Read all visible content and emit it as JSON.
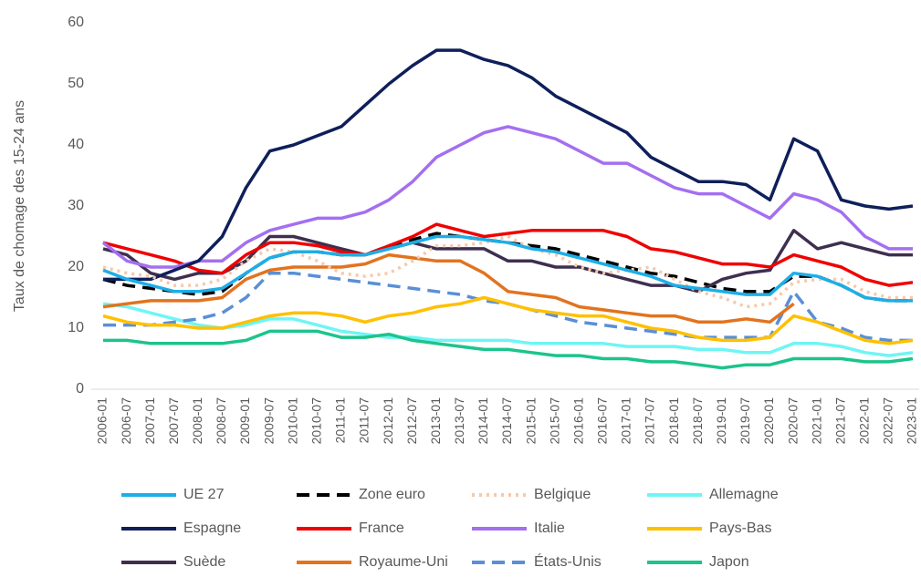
{
  "chart_data": {
    "type": "line",
    "y_label": "Taux de chomage des 15-24 ans",
    "categories": [
      "2006-01",
      "2006-07",
      "2007-01",
      "2007-07",
      "2008-01",
      "2008-07",
      "2009-01",
      "2009-07",
      "2010-01",
      "2010-07",
      "2011-01",
      "2011-07",
      "2012-01",
      "2012-07",
      "2013-01",
      "2013-07",
      "2014-01",
      "2014-07",
      "2015-01",
      "2015-07",
      "2016-01",
      "2016-07",
      "2017-01",
      "2017-07",
      "2018-01",
      "2018-07",
      "2019-01",
      "2019-07",
      "2020-01",
      "2020-07",
      "2021-01",
      "2021-07",
      "2022-01",
      "2022-07",
      "2023-01"
    ],
    "ylim": [
      0,
      60
    ],
    "yticks": [
      0,
      10,
      20,
      30,
      40,
      50,
      60
    ],
    "grid": false,
    "series": [
      {
        "name": "UE 27",
        "color": "#1eaee6",
        "style": "solid",
        "values": [
          19.5,
          18,
          17,
          16,
          16,
          16.5,
          19,
          21.5,
          22.5,
          22.5,
          22,
          22,
          23,
          24,
          25,
          25,
          24.5,
          24,
          23,
          22.5,
          21.5,
          20.5,
          19.5,
          18.5,
          17,
          16.5,
          16,
          15.5,
          15.5,
          19,
          18.5,
          17,
          15,
          14.5,
          14.5
        ]
      },
      {
        "name": "Zone euro",
        "color": "#000000",
        "style": "dashed",
        "values": [
          18,
          17,
          16.5,
          16,
          15.5,
          16,
          19,
          21.5,
          22.5,
          22.5,
          22,
          22,
          23.5,
          24.5,
          25.5,
          25,
          24.5,
          24,
          23.5,
          23,
          22,
          21,
          20,
          19,
          18.5,
          17.5,
          16.5,
          16,
          16,
          18.5,
          18.5,
          17,
          15,
          14.5,
          14.5
        ]
      },
      {
        "name": "Belgique",
        "color": "#f8c8a8",
        "style": "dotted",
        "values": [
          20,
          19,
          18.5,
          17,
          17,
          18,
          21,
          23,
          22.5,
          21,
          19,
          18.5,
          19,
          21,
          23.5,
          23.5,
          24,
          25,
          23,
          22,
          20,
          19,
          19.5,
          20,
          18,
          16,
          15,
          13.5,
          14,
          17.5,
          18,
          18,
          16,
          15,
          15
        ]
      },
      {
        "name": "Allemagne",
        "color": "#6ff5f5",
        "style": "solid",
        "values": [
          14,
          13.5,
          12.5,
          11.5,
          10.5,
          10,
          10.5,
          11.5,
          11.5,
          10.5,
          9.5,
          9,
          8.5,
          8.5,
          8,
          8,
          8,
          8,
          7.5,
          7.5,
          7.5,
          7.5,
          7,
          7,
          7,
          6.5,
          6.5,
          6,
          6,
          7.5,
          7.5,
          7,
          6,
          5.5,
          6
        ]
      },
      {
        "name": "Espagne",
        "color": "#0e1f5a",
        "style": "solid",
        "values": [
          18,
          18,
          18,
          19.5,
          21,
          25,
          33,
          39,
          40,
          41.5,
          43,
          46.5,
          50,
          53,
          55.5,
          55.5,
          54,
          53,
          51,
          48,
          46,
          44,
          42,
          38,
          36,
          34,
          34,
          33.5,
          31,
          41,
          39,
          31,
          30,
          29.5,
          30
        ]
      },
      {
        "name": "France",
        "color": "#f00000",
        "style": "solid",
        "values": [
          24,
          23,
          22,
          21,
          19.5,
          19,
          22,
          24,
          24,
          23.5,
          22.5,
          22,
          23.5,
          25,
          27,
          26,
          25,
          25.5,
          26,
          26,
          26,
          26,
          25,
          23,
          22.5,
          21.5,
          20.5,
          20.5,
          20,
          22,
          21,
          20,
          18,
          17,
          17.5
        ]
      },
      {
        "name": "Italie",
        "color": "#a46ff0",
        "style": "solid",
        "values": [
          24,
          21,
          20,
          20,
          21,
          21,
          24,
          26,
          27,
          28,
          28,
          29,
          31,
          34,
          38,
          40,
          42,
          43,
          42,
          41,
          39,
          37,
          37,
          35,
          33,
          32,
          32,
          30,
          28,
          32,
          31,
          29,
          25,
          23,
          23
        ]
      },
      {
        "name": "Pays-Bas",
        "color": "#ffc000",
        "style": "solid",
        "values": [
          12,
          11,
          10.5,
          10.5,
          10,
          10,
          11,
          12,
          12.5,
          12.5,
          12,
          11,
          12,
          12.5,
          13.5,
          14,
          15,
          14,
          13,
          12.5,
          12,
          12,
          11,
          10,
          9.5,
          8.5,
          8,
          8,
          8.5,
          12,
          11,
          9.5,
          8,
          7.5,
          8
        ]
      },
      {
        "name": "Suède",
        "color": "#3e2f4f",
        "style": "solid",
        "values": [
          23,
          22,
          19,
          18,
          19,
          19,
          21,
          25,
          25,
          24,
          23,
          22,
          23,
          24,
          23,
          23,
          23,
          21,
          21,
          20,
          20,
          19,
          18,
          17,
          17,
          16,
          18,
          19,
          19.5,
          26,
          23,
          24,
          23,
          22,
          22
        ]
      },
      {
        "name": "Royaume-Uni",
        "color": "#e2731f",
        "style": "solid",
        "values": [
          13.5,
          14,
          14.5,
          14.5,
          14.5,
          15,
          18,
          19.5,
          20,
          20,
          20,
          20.5,
          22,
          21.5,
          21,
          21,
          19,
          16,
          15.5,
          15,
          13.5,
          13,
          12.5,
          12,
          12,
          11,
          11,
          11.5,
          11,
          14,
          null,
          null,
          null,
          null,
          null
        ]
      },
      {
        "name": "États-Unis",
        "color": "#5a8fd5",
        "style": "dashed",
        "values": [
          10.5,
          10.5,
          10.5,
          11,
          11.5,
          12.5,
          15,
          19,
          19,
          18.5,
          18,
          17.5,
          17,
          16.5,
          16,
          15.5,
          14.5,
          14,
          13,
          12,
          11,
          10.5,
          10,
          9.5,
          9,
          8.5,
          8.5,
          8.5,
          8.5,
          16,
          11,
          10,
          8.5,
          8,
          8
        ]
      },
      {
        "name": "Japon",
        "color": "#1cc48b",
        "style": "solid",
        "values": [
          8,
          8,
          7.5,
          7.5,
          7.5,
          7.5,
          8,
          9.5,
          9.5,
          9.5,
          8.5,
          8.5,
          9,
          8,
          7.5,
          7,
          6.5,
          6.5,
          6,
          5.5,
          5.5,
          5,
          5,
          4.5,
          4.5,
          4,
          3.5,
          4,
          4,
          5,
          5,
          5,
          4.5,
          4.5,
          5
        ]
      }
    ]
  }
}
